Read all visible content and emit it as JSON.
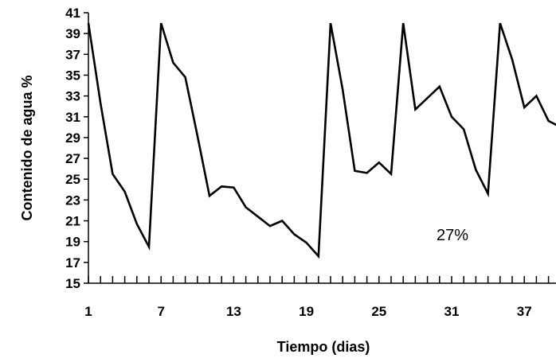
{
  "chart_data": {
    "type": "line",
    "title": "",
    "xlabel": "Tiempo (dias)",
    "ylabel": "Contenido de agua %",
    "ylim": [
      15,
      41
    ],
    "xlim": [
      1,
      40
    ],
    "yticks": [
      "15",
      "17",
      "19",
      "21",
      "23",
      "25",
      "27",
      "29",
      "31",
      "33",
      "35",
      "37",
      "39",
      "41"
    ],
    "xticks": [
      "1",
      "7",
      "13",
      "19",
      "25",
      "31",
      "37"
    ],
    "grid": false,
    "legend": "none",
    "annotation": "27%",
    "color": "#000000",
    "series": [
      {
        "x": [
          1,
          2,
          3,
          4,
          5,
          6,
          7,
          8,
          9,
          10,
          11,
          12,
          13,
          14,
          15,
          16,
          17,
          18,
          19,
          20,
          21,
          22,
          23,
          24,
          25,
          26,
          27,
          28,
          29,
          30,
          31,
          32,
          33,
          34,
          35,
          36,
          37,
          38,
          39,
          40
        ],
        "values": [
          40,
          32.3,
          25.5,
          23.8,
          20.7,
          18.5,
          40,
          36.2,
          34.8,
          29.2,
          23.4,
          24.3,
          24.2,
          22.3,
          21.4,
          20.5,
          21.0,
          19.7,
          18.9,
          17.6,
          40,
          33.6,
          25.8,
          25.6,
          26.6,
          25.5,
          40,
          31.7,
          32.8,
          33.9,
          31.0,
          29.8,
          25.9,
          23.6,
          40,
          36.5,
          31.9,
          33.0,
          30.6,
          30.0
        ]
      }
    ]
  }
}
